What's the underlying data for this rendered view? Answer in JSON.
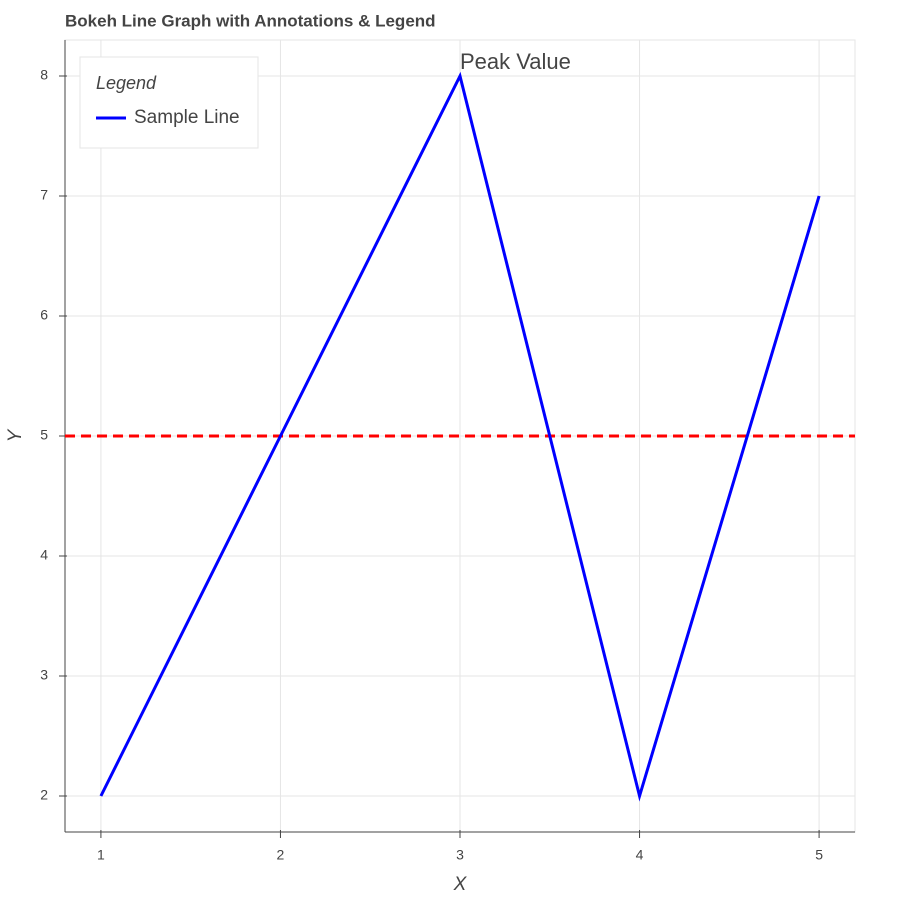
{
  "chart_data": {
    "type": "line",
    "title": "Bokeh Line Graph with Annotations & Legend",
    "x_label": "X",
    "y_label": "Y",
    "x": [
      1,
      2,
      3,
      4,
      5
    ],
    "series": [
      {
        "name": "Sample Line",
        "color": "#0000ff",
        "values": [
          2,
          5,
          8,
          2,
          7
        ]
      }
    ],
    "xlim": [
      0.8,
      5.2
    ],
    "xticks": [
      1,
      2,
      3,
      4,
      5
    ],
    "ylim": [
      1.7,
      8.3
    ],
    "yticks": [
      2,
      3,
      4,
      5,
      6,
      7,
      8
    ],
    "grid": true,
    "legend_title": "Legend",
    "legend_position": "top-left",
    "hline": {
      "value": 5,
      "color": "#ff0000"
    },
    "annotation": {
      "text": "Peak Value",
      "x": 3,
      "y": 8,
      "color": "#008000"
    }
  }
}
